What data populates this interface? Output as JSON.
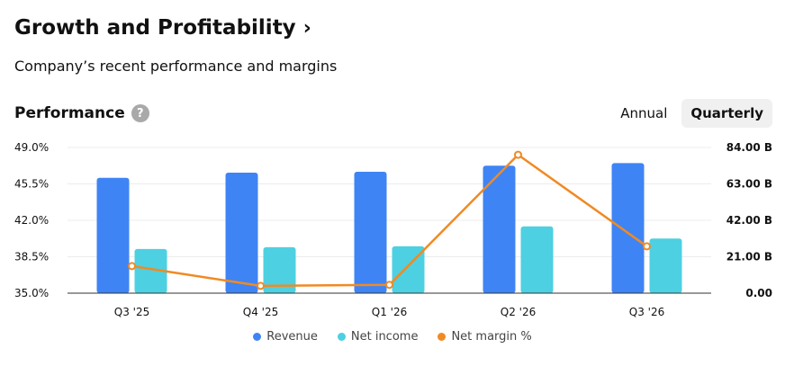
{
  "header": {
    "title": "Growth and Profitability",
    "chevron": "›"
  },
  "subtitle": "Company’s recent performance and margins",
  "section": {
    "title": "Performance",
    "help_icon": "?"
  },
  "toggle": {
    "annual": "Annual",
    "quarterly": "Quarterly",
    "selected": "Quarterly"
  },
  "colors": {
    "revenue": "#3f84f4",
    "net_income": "#4dd0e1",
    "net_margin": "#f08a24"
  },
  "chart_data": {
    "type": "bar",
    "categories": [
      "Q3 '25",
      "Q4 '25",
      "Q1 '26",
      "Q2 '26",
      "Q3 '26"
    ],
    "series": [
      {
        "name": "Revenue",
        "axis": "right",
        "values": [
          66.5,
          69.5,
          70.0,
          73.5,
          75.0
        ]
      },
      {
        "name": "Net income",
        "axis": "right",
        "values": [
          25.5,
          26.5,
          27.0,
          38.5,
          31.5
        ]
      },
      {
        "name": "Net margin %",
        "axis": "left",
        "type": "line",
        "values": [
          37.6,
          35.7,
          35.8,
          48.3,
          39.5
        ]
      }
    ],
    "left_axis": {
      "ticks": [
        "49.0%",
        "45.5%",
        "42.0%",
        "38.5%",
        "35.0%"
      ],
      "range": [
        35.0,
        49.0
      ]
    },
    "right_axis": {
      "ticks": [
        "84.00 B",
        "63.00 B",
        "42.00 B",
        "21.00 B",
        "0.00"
      ],
      "range": [
        0,
        84
      ]
    },
    "grid": true,
    "legend_position": "bottom-center"
  }
}
